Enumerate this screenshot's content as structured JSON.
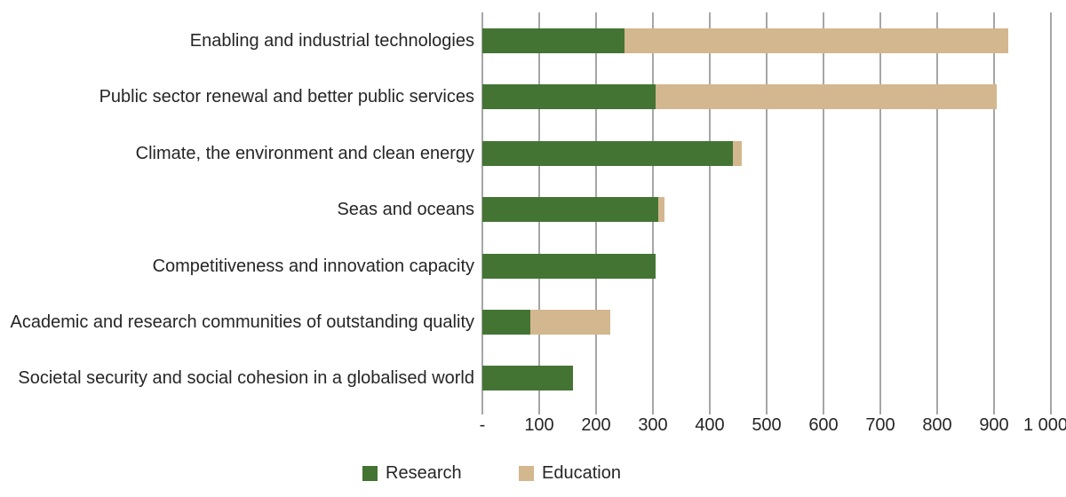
{
  "chart_data": {
    "type": "bar",
    "orientation": "horizontal",
    "stacked": true,
    "title": "",
    "xlabel": "",
    "ylabel": "",
    "xlim": [
      0,
      1000
    ],
    "x_tick_interval": 100,
    "x_tick_labels": [
      "-",
      "100",
      "200",
      "300",
      "400",
      "500",
      "600",
      "700",
      "800",
      "900",
      "1 000"
    ],
    "grid": "vertical",
    "legend_position": "bottom",
    "categories": [
      "Enabling and industrial technologies",
      "Public sector renewal and better public services",
      "Climate, the environment and clean energy",
      "Seas and oceans",
      "Competitiveness and innovation capacity",
      "Academic and research communities of outstanding quality",
      "Societal security and social cohesion in a globalised world"
    ],
    "series": [
      {
        "name": "Research",
        "color": "#447434",
        "values": [
          250,
          305,
          440,
          310,
          305,
          85,
          160
        ]
      },
      {
        "name": "Education",
        "color": "#d3b78e",
        "values": [
          675,
          600,
          17,
          11,
          0,
          140,
          0
        ]
      }
    ]
  },
  "legend": {
    "items": [
      {
        "label": "Research",
        "color": "#447434"
      },
      {
        "label": "Education",
        "color": "#d3b78e"
      }
    ]
  },
  "colors": {
    "research": "#447434",
    "education": "#d3b78e",
    "gridline": "#a6a6a6",
    "text": "#262626",
    "background": "#ffffff"
  }
}
